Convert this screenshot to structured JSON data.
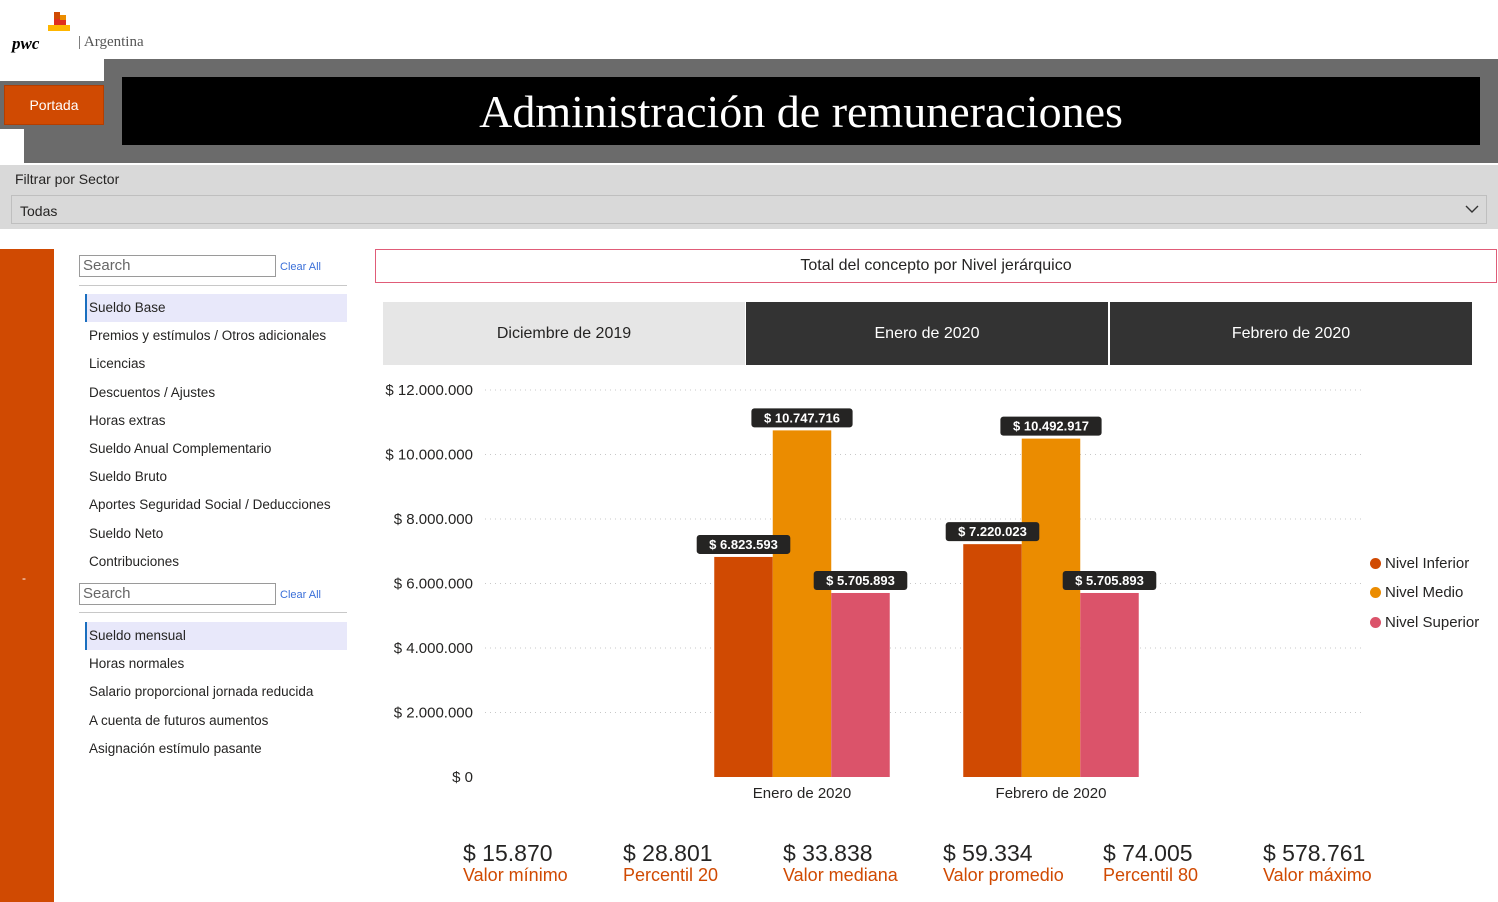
{
  "header": {
    "logo_text": "pwc",
    "country": "| Argentina",
    "portada_label": "Portada",
    "title": "Administración de remuneraciones"
  },
  "filter": {
    "label": "Filtrar por Sector",
    "value": "Todas"
  },
  "leftbar": {
    "marker": "-"
  },
  "slicer1": {
    "search_placeholder": "Search",
    "clear_label": "Clear All",
    "items": [
      {
        "label": "Sueldo Base",
        "selected": true
      },
      {
        "label": "Premios y estímulos / Otros adicionales"
      },
      {
        "label": "Licencias"
      },
      {
        "label": "Descuentos / Ajustes"
      },
      {
        "label": "Horas extras"
      },
      {
        "label": "Sueldo Anual Complementario"
      },
      {
        "label": "Sueldo Bruto"
      },
      {
        "label": "Aportes Seguridad Social / Deducciones"
      },
      {
        "label": "Sueldo Neto"
      },
      {
        "label": "Contribuciones"
      }
    ]
  },
  "slicer2": {
    "search_placeholder": "Search",
    "clear_label": "Clear All",
    "items": [
      {
        "label": "Sueldo mensual",
        "selected": true
      },
      {
        "label": "Horas normales"
      },
      {
        "label": "Salario proporcional jornada reducida"
      },
      {
        "label": "A cuenta de futuros aumentos"
      },
      {
        "label": "Asignación estímulo pasante"
      }
    ]
  },
  "chart_panel": {
    "title": "Total del concepto por Nivel jerárquico",
    "tabs": [
      {
        "label": "Diciembre de 2019",
        "active": false
      },
      {
        "label": "Enero de 2020",
        "active": true
      },
      {
        "label": "Febrero de 2020",
        "active": true
      }
    ]
  },
  "colors": {
    "accent": "#d04a02",
    "nivel_inferior": "#d04a02",
    "nivel_medio": "#eb8c00",
    "nivel_superior": "#db536a"
  },
  "chart_data": {
    "type": "bar",
    "categories": [
      "Enero de 2020",
      "Febrero de 2020"
    ],
    "series": [
      {
        "name": "Nivel Inferior",
        "color": "#d04a02",
        "values": [
          6823593,
          7220023
        ],
        "labels": [
          "$ 6.823.593",
          "$ 7.220.023"
        ]
      },
      {
        "name": "Nivel Medio",
        "color": "#eb8c00",
        "values": [
          10747716,
          10492917
        ],
        "labels": [
          "$ 10.747.716",
          "$ 10.492.917"
        ]
      },
      {
        "name": "Nivel Superior",
        "color": "#db536a",
        "values": [
          5705893,
          5705893
        ],
        "labels": [
          "$ 5.705.893",
          "$ 5.705.893"
        ]
      }
    ],
    "yticks": [
      0,
      2000000,
      4000000,
      6000000,
      8000000,
      10000000,
      12000000
    ],
    "ytick_labels": [
      "$ 0",
      "$ 2.000.000",
      "$ 4.000.000",
      "$ 6.000.000",
      "$ 8.000.000",
      "$ 10.000.000",
      "$ 12.000.000"
    ],
    "ylim": [
      0,
      12000000
    ],
    "grid": true,
    "legend_position": "right"
  },
  "stats": [
    {
      "value": "$ 15.870",
      "label": "Valor mínimo"
    },
    {
      "value": "$ 28.801",
      "label": "Percentil 20"
    },
    {
      "value": "$ 33.838",
      "label": "Valor mediana"
    },
    {
      "value": "$ 59.334",
      "label": "Valor promedio"
    },
    {
      "value": "$ 74.005",
      "label": "Percentil 80"
    },
    {
      "value": "$ 578.761",
      "label": "Valor máximo"
    }
  ]
}
